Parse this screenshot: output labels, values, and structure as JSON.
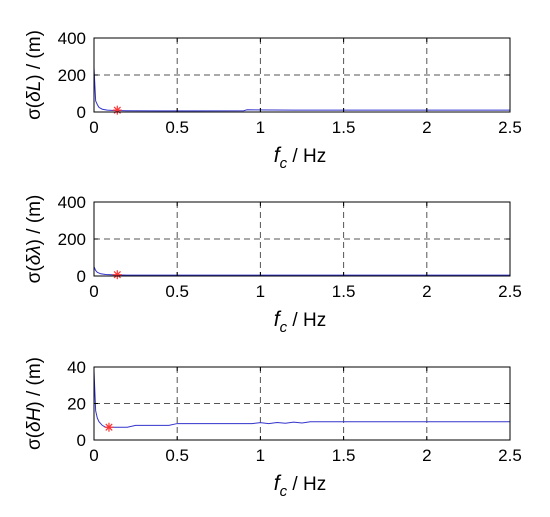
{
  "chart_data": [
    {
      "type": "line",
      "ylabel_parts": [
        "σ(",
        "δL",
        ") / (m)"
      ],
      "xlabel_parts": [
        "f",
        "c",
        " / Hz"
      ],
      "xlim": [
        0,
        2.5
      ],
      "ylim": [
        0,
        400
      ],
      "xticks": [
        "0",
        "0.5",
        "1",
        "1.5",
        "2",
        "2.5"
      ],
      "yticks": [
        "0",
        "200",
        "400"
      ],
      "grid": true,
      "series": [
        {
          "color": "#3333cc",
          "x": [
            0.0,
            0.01,
            0.02,
            0.03,
            0.05,
            0.08,
            0.12,
            0.2,
            0.4,
            0.6,
            0.9,
            0.92,
            1.2,
            1.6,
            2.0,
            2.5
          ],
          "y": [
            240,
            60,
            40,
            25,
            15,
            10,
            8,
            7,
            6,
            6,
            7,
            12,
            10,
            10,
            10,
            10
          ]
        }
      ],
      "marker": {
        "x": 0.14,
        "y": 10,
        "color": "#ff3333",
        "symbol": "asterisk"
      }
    },
    {
      "type": "line",
      "ylabel_parts": [
        "σ(",
        "δλ",
        ") / (m)"
      ],
      "xlabel_parts": [
        "f",
        "c",
        " / Hz"
      ],
      "xlim": [
        0,
        2.5
      ],
      "ylim": [
        0,
        400
      ],
      "xticks": [
        "0",
        "0.5",
        "1",
        "1.5",
        "2",
        "2.5"
      ],
      "yticks": [
        "0",
        "200",
        "400"
      ],
      "grid": true,
      "series": [
        {
          "color": "#3333cc",
          "x": [
            0.0,
            0.01,
            0.02,
            0.04,
            0.07,
            0.12,
            0.2,
            0.5,
            1.0,
            1.5,
            2.0,
            2.5
          ],
          "y": [
            50,
            30,
            20,
            12,
            8,
            6,
            5,
            5,
            5,
            5,
            5,
            5
          ]
        }
      ],
      "marker": {
        "x": 0.14,
        "y": 7,
        "color": "#ff3333",
        "symbol": "asterisk"
      }
    },
    {
      "type": "line",
      "ylabel_parts": [
        "σ(",
        "δH",
        ") / (m)"
      ],
      "xlabel_parts": [
        "f",
        "c",
        " / Hz"
      ],
      "xlim": [
        0,
        2.5
      ],
      "ylim": [
        0,
        40
      ],
      "xticks": [
        "0",
        "0.5",
        "1",
        "1.5",
        "2",
        "2.5"
      ],
      "yticks": [
        "0",
        "20",
        "40"
      ],
      "grid": true,
      "series": [
        {
          "color": "#3333cc",
          "x": [
            0.0,
            0.01,
            0.02,
            0.03,
            0.05,
            0.07,
            0.1,
            0.2,
            0.25,
            0.3,
            0.45,
            0.5,
            0.7,
            0.95,
            1.0,
            1.05,
            1.1,
            1.15,
            1.2,
            1.25,
            1.3,
            1.5,
            2.0,
            2.5
          ],
          "y": [
            38,
            16,
            12,
            10,
            8,
            7,
            7,
            7,
            8,
            8,
            8,
            9,
            9,
            9,
            9.5,
            9,
            9.6,
            9.2,
            9.8,
            9.3,
            10,
            10,
            10,
            10
          ]
        }
      ],
      "marker": {
        "x": 0.09,
        "y": 7,
        "color": "#ff3333",
        "symbol": "asterisk"
      }
    }
  ]
}
